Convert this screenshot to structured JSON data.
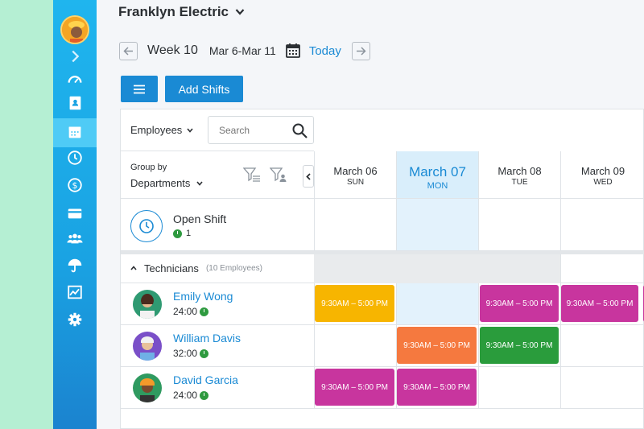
{
  "company": {
    "name": "Franklyn Electric"
  },
  "week": {
    "label": "Week 10",
    "range": "Mar 6-Mar 11",
    "today_label": "Today"
  },
  "toolbar": {
    "add_shifts_label": "Add Shifts"
  },
  "filters": {
    "employees_label": "Employees",
    "search_placeholder": "Search"
  },
  "groupby": {
    "label": "Group by",
    "value": "Departments"
  },
  "days": [
    {
      "name": "March 06",
      "weekday": "SUN",
      "today": false
    },
    {
      "name": "March 07",
      "weekday": "MON",
      "today": true
    },
    {
      "name": "March 08",
      "weekday": "TUE",
      "today": false
    },
    {
      "name": "March 09",
      "weekday": "WED",
      "today": false
    }
  ],
  "open_shift": {
    "title": "Open Shift",
    "count": "1"
  },
  "department": {
    "name": "Technicians",
    "count": "(10 Employees)"
  },
  "employees": [
    {
      "name": "Emily Wong",
      "hours": "24:00"
    },
    {
      "name": "William Davis",
      "hours": "32:00"
    },
    {
      "name": "David Garcia",
      "hours": "24:00"
    }
  ],
  "shift_time": "9:30AM – 5:00 PM",
  "colors": {
    "accent": "#1a8ad4",
    "yellow": "#f7b500",
    "orange": "#f5793f",
    "green": "#2a9c3c",
    "magenta": "#c8359e"
  },
  "icons": [
    "chevron-right-icon",
    "dashboard-icon",
    "contacts-icon",
    "calendar-icon",
    "clock-icon",
    "dollar-icon",
    "card-icon",
    "team-icon",
    "umbrella-icon",
    "chart-icon",
    "gear-icon"
  ]
}
